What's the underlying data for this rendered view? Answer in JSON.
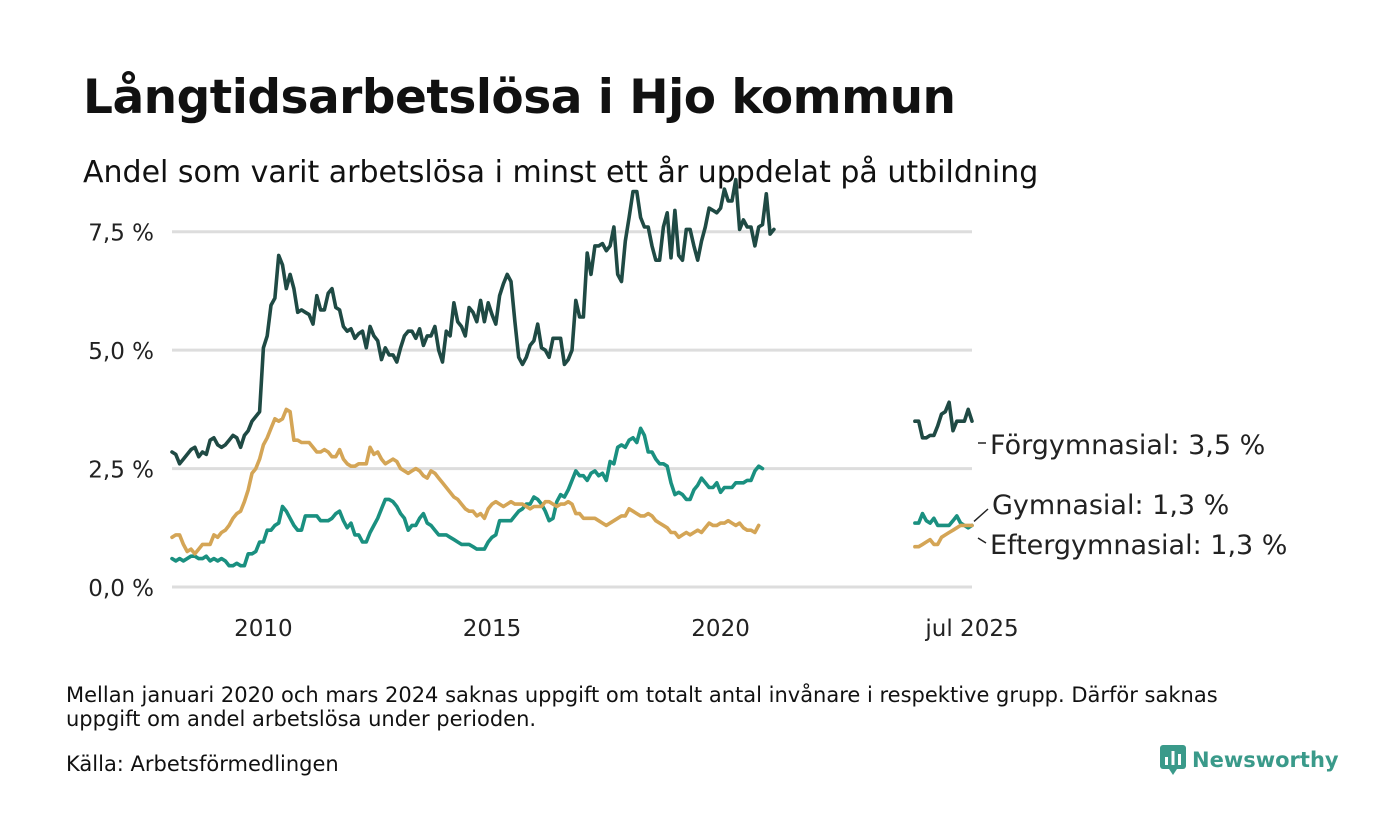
{
  "title": "Långtidsarbetslösa i Hjo kommun",
  "subtitle": "Andel som varit arbetslösa i minst ett år uppdelat på utbildning",
  "note": "Mellan januari 2020 och mars 2024 saknas uppgift om totalt antal invånare i respektive grupp. Därför saknas uppgift om andel arbetslösa under perioden.",
  "source": "Källa: Arbetsförmedlingen",
  "logo": {
    "text": "Newsworthy",
    "icon": "bar-chart-icon"
  },
  "chart_data": {
    "type": "line",
    "title": "Långtidsarbetslösa i Hjo kommun",
    "subtitle": "Andel som varit arbetslösa i minst ett år uppdelat på utbildning",
    "xlabel": "",
    "ylabel": "",
    "ylim": [
      0,
      9.5
    ],
    "xlim": [
      "2008-01",
      "2025-07"
    ],
    "x_ticks": [
      {
        "x": "2010-01",
        "label": "2010"
      },
      {
        "x": "2015-01",
        "label": "2015"
      },
      {
        "x": "2020-01",
        "label": "2020"
      },
      {
        "x": "2025-07",
        "label": "jul 2025"
      }
    ],
    "y_ticks": [
      {
        "value": 0,
        "label": "0,0 %"
      },
      {
        "value": 2.5,
        "label": "2,5 %"
      },
      {
        "value": 5,
        "label": "5,0 %"
      },
      {
        "value": 7.5,
        "label": "7,5 %"
      }
    ],
    "grid": "horizontal",
    "legend": "end labels",
    "series": [
      {
        "name": "Förgymnasial",
        "end_label": "Förgymnasial: 3,5 %",
        "color": "#1f4a44",
        "segments": [
          {
            "start": "2008-01",
            "values": [
              2.85,
              2.8,
              2.6,
              2.7,
              2.8,
              2.9,
              2.95,
              2.75,
              2.85,
              2.8,
              3.1,
              3.15,
              3.0,
              2.95,
              3.0,
              3.1,
              3.2,
              3.15,
              2.95,
              3.2,
              3.3,
              3.5,
              3.6,
              3.7,
              5.05,
              5.3,
              5.95,
              6.1,
              7.0,
              6.8,
              6.3,
              6.6,
              6.3,
              5.8,
              5.85,
              5.8,
              5.75,
              5.55,
              6.15,
              5.85,
              5.85,
              6.2,
              6.3,
              5.9,
              5.85,
              5.5,
              5.4,
              5.45,
              5.25,
              5.35,
              5.4,
              5.05,
              5.5,
              5.3,
              5.2,
              4.8,
              5.05,
              4.9,
              4.9,
              4.75,
              5.05,
              5.3,
              5.4,
              5.4,
              5.25,
              5.45,
              5.1,
              5.3,
              5.3,
              5.5,
              5.0,
              4.75,
              5.4,
              5.3,
              6.0,
              5.6,
              5.5,
              5.3,
              5.9,
              5.8,
              5.6,
              6.05,
              5.6,
              6.0,
              5.75,
              5.55,
              6.15,
              6.4,
              6.6,
              6.45,
              5.6,
              4.85,
              4.7,
              4.85,
              5.1,
              5.2,
              5.55,
              5.05,
              5.0,
              4.85,
              5.25,
              5.25,
              5.25,
              4.7,
              4.8,
              5.0,
              6.05,
              5.7,
              5.7,
              7.05,
              6.6,
              7.2,
              7.2,
              7.25,
              7.1,
              7.2,
              7.6,
              6.6,
              6.45,
              7.3,
              7.8,
              8.35,
              8.35,
              7.8,
              7.6,
              7.6,
              7.2,
              6.9,
              6.9,
              7.6,
              7.9,
              6.95,
              7.95,
              7.0,
              6.9,
              7.55,
              7.55,
              7.2,
              6.9,
              7.3,
              7.6,
              8.0,
              7.95,
              7.9,
              8.0,
              8.4,
              8.15,
              8.15,
              8.6,
              7.55,
              7.75,
              7.6,
              7.6,
              7.2,
              7.6,
              7.65,
              8.3,
              7.45,
              7.55
            ]
          },
          {
            "start": "2024-04",
            "values": [
              3.5,
              3.5,
              3.15,
              3.15,
              3.2,
              3.2,
              3.4,
              3.65,
              3.7,
              3.9,
              3.3,
              3.5,
              3.5,
              3.5,
              3.75,
              3.5
            ]
          }
        ]
      },
      {
        "name": "Gymnasial",
        "end_label": "Gymnasial: 1,3 %",
        "color": "#1a9080",
        "segments": [
          {
            "start": "2008-01",
            "values": [
              0.6,
              0.55,
              0.6,
              0.55,
              0.6,
              0.65,
              0.65,
              0.6,
              0.6,
              0.65,
              0.55,
              0.6,
              0.55,
              0.6,
              0.55,
              0.45,
              0.45,
              0.5,
              0.45,
              0.45,
              0.7,
              0.7,
              0.75,
              0.95,
              0.95,
              1.2,
              1.2,
              1.3,
              1.35,
              1.7,
              1.6,
              1.45,
              1.3,
              1.2,
              1.2,
              1.5,
              1.5,
              1.5,
              1.5,
              1.4,
              1.4,
              1.4,
              1.45,
              1.55,
              1.6,
              1.4,
              1.25,
              1.35,
              1.1,
              1.1,
              0.95,
              0.95,
              1.15,
              1.3,
              1.45,
              1.65,
              1.85,
              1.85,
              1.8,
              1.7,
              1.55,
              1.45,
              1.2,
              1.3,
              1.3,
              1.45,
              1.55,
              1.35,
              1.3,
              1.2,
              1.1,
              1.1,
              1.1,
              1.05,
              1.0,
              0.95,
              0.9,
              0.9,
              0.9,
              0.85,
              0.8,
              0.8,
              0.8,
              0.95,
              1.05,
              1.1,
              1.4,
              1.4,
              1.4,
              1.4,
              1.5,
              1.6,
              1.65,
              1.75,
              1.75,
              1.9,
              1.85,
              1.75,
              1.6,
              1.4,
              1.45,
              1.8,
              1.95,
              1.9,
              2.05,
              2.25,
              2.45,
              2.35,
              2.35,
              2.25,
              2.4,
              2.45,
              2.35,
              2.4,
              2.25,
              2.65,
              2.6,
              2.95,
              3.0,
              2.95,
              3.1,
              3.15,
              3.05,
              3.35,
              3.2,
              2.85,
              2.85,
              2.7,
              2.6,
              2.6,
              2.55,
              2.2,
              1.95,
              2.0,
              1.95,
              1.85,
              1.85,
              2.05,
              2.15,
              2.3,
              2.2,
              2.1,
              2.1,
              2.2,
              2.0,
              2.1,
              2.1,
              2.1,
              2.2,
              2.2,
              2.2,
              2.25,
              2.25,
              2.45,
              2.55,
              2.5
            ]
          },
          {
            "start": "2024-04",
            "values": [
              1.35,
              1.35,
              1.55,
              1.4,
              1.35,
              1.45,
              1.3,
              1.3,
              1.3,
              1.3,
              1.4,
              1.5,
              1.35,
              1.3,
              1.25,
              1.3
            ]
          }
        ]
      },
      {
        "name": "Eftergymnasial",
        "end_label": "Eftergymnasial: 1,3 %",
        "color": "#d4a556",
        "segments": [
          {
            "start": "2008-01",
            "values": [
              1.05,
              1.1,
              1.1,
              0.9,
              0.75,
              0.8,
              0.7,
              0.8,
              0.9,
              0.9,
              0.9,
              1.1,
              1.05,
              1.15,
              1.2,
              1.3,
              1.45,
              1.55,
              1.6,
              1.8,
              2.05,
              2.4,
              2.5,
              2.7,
              3.0,
              3.15,
              3.35,
              3.55,
              3.5,
              3.55,
              3.75,
              3.7,
              3.1,
              3.1,
              3.05,
              3.05,
              3.05,
              2.95,
              2.85,
              2.85,
              2.9,
              2.85,
              2.75,
              2.75,
              2.9,
              2.7,
              2.6,
              2.55,
              2.55,
              2.6,
              2.6,
              2.6,
              2.95,
              2.8,
              2.85,
              2.7,
              2.6,
              2.65,
              2.7,
              2.65,
              2.5,
              2.45,
              2.4,
              2.45,
              2.5,
              2.45,
              2.35,
              2.3,
              2.45,
              2.4,
              2.3,
              2.2,
              2.1,
              2.0,
              1.9,
              1.85,
              1.75,
              1.65,
              1.6,
              1.6,
              1.5,
              1.55,
              1.45,
              1.65,
              1.75,
              1.8,
              1.75,
              1.7,
              1.75,
              1.8,
              1.75,
              1.75,
              1.75,
              1.7,
              1.65,
              1.7,
              1.7,
              1.7,
              1.8,
              1.8,
              1.75,
              1.7,
              1.75,
              1.75,
              1.8,
              1.75,
              1.55,
              1.55,
              1.45,
              1.45,
              1.45,
              1.45,
              1.4,
              1.35,
              1.3,
              1.35,
              1.4,
              1.45,
              1.5,
              1.5,
              1.65,
              1.6,
              1.55,
              1.5,
              1.5,
              1.55,
              1.5,
              1.4,
              1.35,
              1.3,
              1.25,
              1.15,
              1.15,
              1.05,
              1.1,
              1.15,
              1.1,
              1.15,
              1.2,
              1.15,
              1.25,
              1.35,
              1.3,
              1.3,
              1.35,
              1.35,
              1.4,
              1.35,
              1.3,
              1.35,
              1.25,
              1.2,
              1.2,
              1.15,
              1.3
            ]
          },
          {
            "start": "2024-04",
            "values": [
              0.85,
              0.85,
              0.9,
              0.95,
              1.0,
              0.9,
              0.9,
              1.05,
              1.1,
              1.15,
              1.2,
              1.25,
              1.3,
              1.3,
              1.3,
              1.3
            ]
          }
        ]
      }
    ]
  }
}
